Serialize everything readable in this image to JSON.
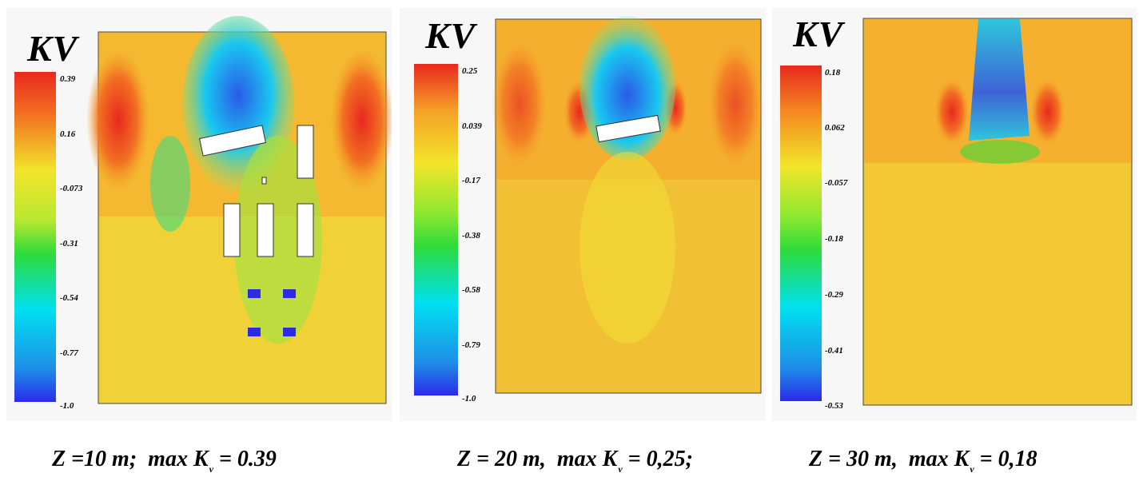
{
  "panels": [
    {
      "colorbar_title": "KV",
      "ticks": [
        "0.39",
        "0.16",
        "-0.073",
        "-0.31",
        "-0.54",
        "-0.77",
        "-1.0"
      ],
      "caption": {
        "z_text": "Z =10 m;",
        "max_text": "max K",
        "subscript": "v",
        "value_text": " = 0.39"
      }
    },
    {
      "colorbar_title": "KV",
      "ticks": [
        "0.25",
        "0.039",
        "-0.17",
        "-0.38",
        "-0.58",
        "-0.79",
        "-1.0"
      ],
      "caption": {
        "z_text": "Z = 20 m,",
        "max_text": "max K",
        "subscript": "v",
        "value_text": " = 0,25;"
      }
    },
    {
      "colorbar_title": "KV",
      "ticks": [
        "0.18",
        "0.062",
        "-0.057",
        "-0.18",
        "-0.29",
        "-0.41",
        "-0.53"
      ],
      "caption": {
        "z_text": "Z = 30 m,",
        "max_text": "max K",
        "subscript": "v",
        "value_text": " = 0,18"
      }
    }
  ],
  "colors": {
    "red": "#e8281e",
    "orange": "#f58a22",
    "yellow": "#f2e52a",
    "green": "#3ddb3a",
    "cyan": "#00e0f0",
    "blue": "#2a2ae8"
  }
}
